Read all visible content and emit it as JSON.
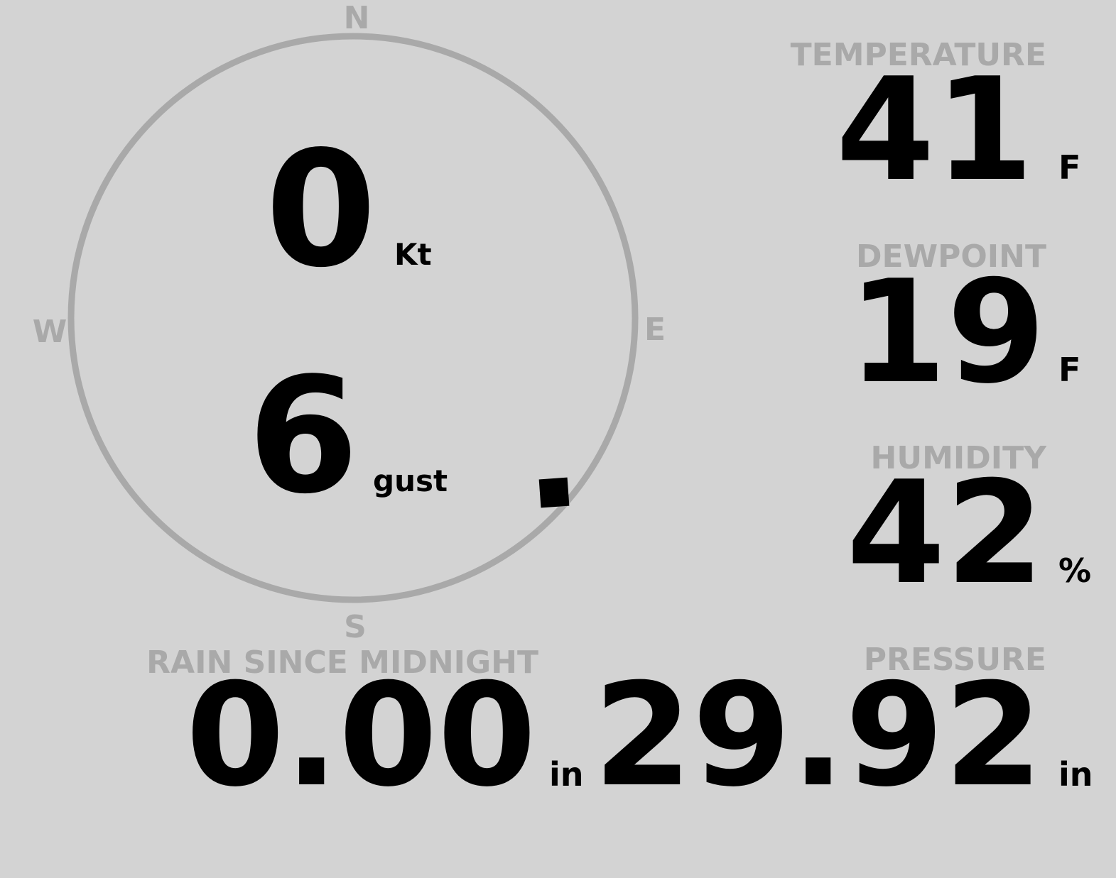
{
  "compass": {
    "north": "N",
    "south": "S",
    "east": "E",
    "west": "W",
    "wind_direction": 131
  },
  "wind": {
    "speed": "0",
    "speed_unit": "Kt",
    "gust": "6",
    "gust_unit": "gust"
  },
  "temperature": {
    "label": "TEMPERATURE",
    "value": "41",
    "unit": "F"
  },
  "dewpoint": {
    "label": "DEWPOINT",
    "value": "19",
    "unit": "F"
  },
  "humidity": {
    "label": "HUMIDITY",
    "value": "42",
    "unit": "%"
  },
  "rain": {
    "label": "RAIN SINCE MIDNIGHT",
    "value": "0.00",
    "unit": "in"
  },
  "pressure": {
    "label": "PRESSURE",
    "value": "29.92",
    "unit": "in"
  }
}
